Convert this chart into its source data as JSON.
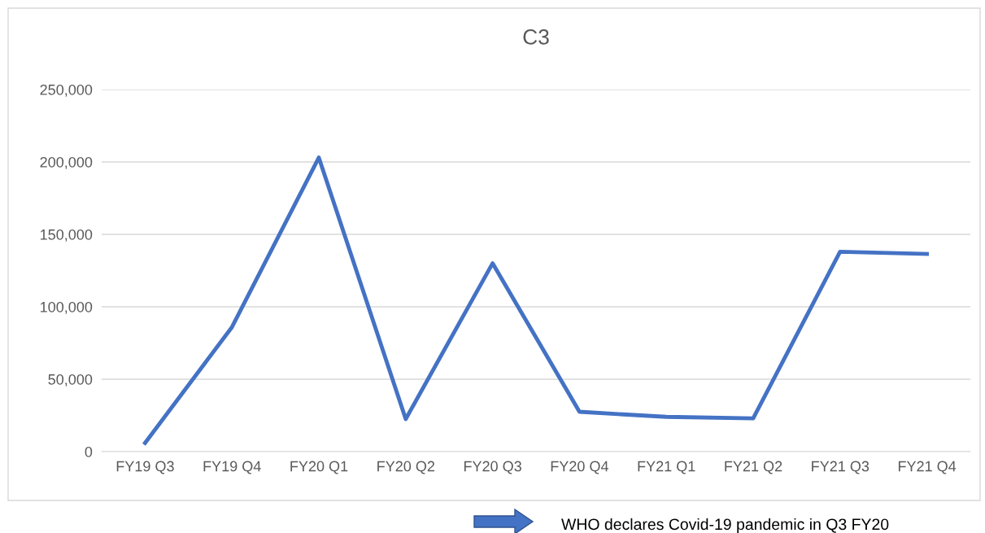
{
  "chart_data": {
    "type": "line",
    "title": "C3",
    "categories": [
      "FY19 Q3",
      "FY19 Q4",
      "FY20 Q1",
      "FY20 Q2",
      "FY20 Q3",
      "FY20 Q4",
      "FY21 Q1",
      "FY21 Q2",
      "FY21 Q3",
      "FY21 Q4"
    ],
    "series": [
      {
        "color": "#4472c4",
        "values": [
          6000,
          86000,
          203000,
          22500,
          130000,
          27500,
          24000,
          23000,
          138000,
          136500
        ]
      }
    ],
    "ylim": [
      0,
      250000
    ],
    "yticks": [
      {
        "value": 0,
        "label": "0"
      },
      {
        "value": 50000,
        "label": "50,000"
      },
      {
        "value": 100000,
        "label": "100,000"
      },
      {
        "value": 150000,
        "label": "150,000"
      },
      {
        "value": 200000,
        "label": "200,000"
      },
      {
        "value": 250000,
        "label": "250,000"
      }
    ],
    "grid": "y",
    "legend": false,
    "marker": "none",
    "line_style": "solid",
    "annotations": [
      "WHO declares Covid-19 pandemic in Q3 FY20"
    ]
  }
}
